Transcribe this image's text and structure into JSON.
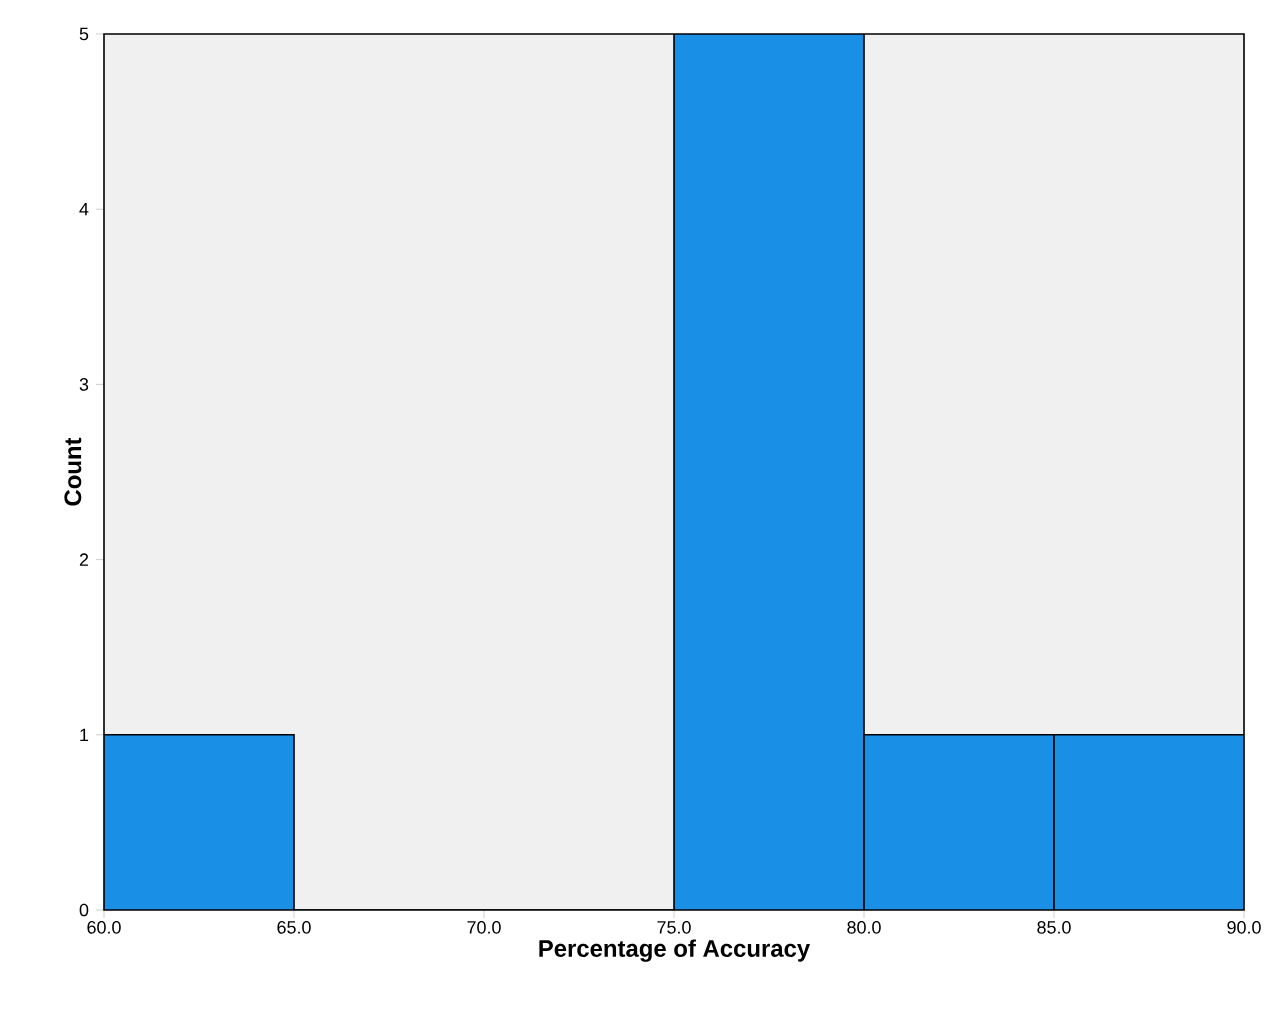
{
  "chart_data": {
    "type": "histogram",
    "xlabel": "Percentage of Accuracy",
    "ylabel": "Count",
    "bins": [
      60,
      65,
      70,
      75,
      80,
      85,
      90
    ],
    "values": [
      1,
      0,
      0,
      5,
      1,
      1
    ],
    "color": "#1a8fe6",
    "xlim": [
      60,
      90
    ],
    "ylim": [
      0,
      5
    ],
    "xticks": [
      {
        "value": 60,
        "label": "60.0"
      },
      {
        "value": 65,
        "label": "65.0"
      },
      {
        "value": 70,
        "label": "70.0"
      },
      {
        "value": 75,
        "label": "75.0"
      },
      {
        "value": 80,
        "label": "80.0"
      },
      {
        "value": 85,
        "label": "85.0"
      },
      {
        "value": 90,
        "label": "90.0"
      }
    ],
    "yticks": [
      0,
      1,
      2,
      3,
      4,
      5
    ]
  }
}
